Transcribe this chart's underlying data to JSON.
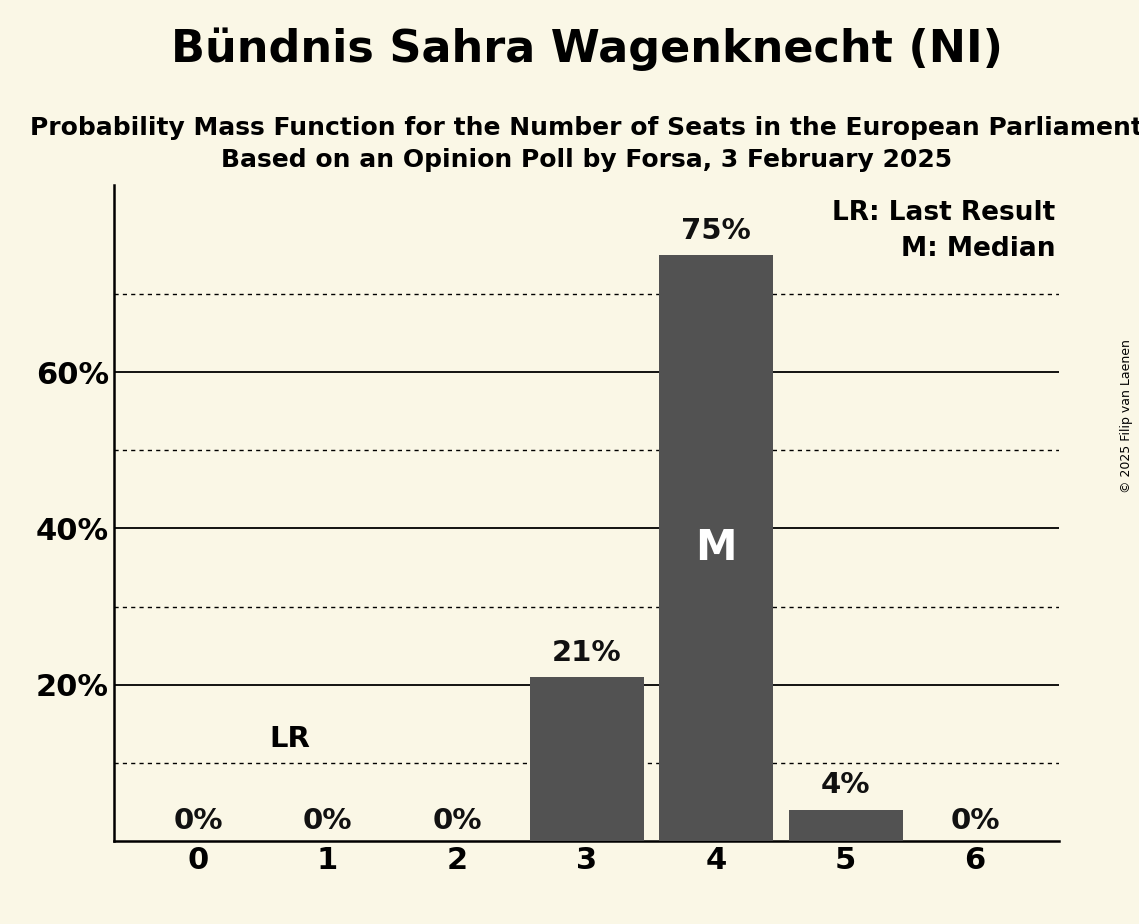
{
  "title": "Bündnis Sahra Wagenknecht (NI)",
  "subtitle1": "Probability Mass Function for the Number of Seats in the European Parliament",
  "subtitle2": "Based on an Opinion Poll by Forsa, 3 February 2025",
  "copyright": "© 2025 Filip van Laenen",
  "categories": [
    0,
    1,
    2,
    3,
    4,
    5,
    6
  ],
  "values": [
    0.0,
    0.0,
    0.0,
    0.21,
    0.75,
    0.04,
    0.0
  ],
  "bar_color": "#525252",
  "background_color": "#FAF7E6",
  "bar_labels": [
    "0%",
    "0%",
    "0%",
    "21%",
    "75%",
    "4%",
    "0%"
  ],
  "bar_label_color_outside": "#111111",
  "median_bar_index": 4,
  "median_label": "M",
  "lr_value": 0.1,
  "lr_label": "LR",
  "legend_lr": "LR: Last Result",
  "legend_m": "M: Median",
  "ylim": [
    0,
    0.84
  ],
  "solid_lines": [
    0.2,
    0.4,
    0.6
  ],
  "dotted_lines": [
    0.1,
    0.3,
    0.5,
    0.7
  ],
  "yticks": [
    0.2,
    0.4,
    0.6
  ],
  "ytick_labels": [
    "20%",
    "40%",
    "60%"
  ],
  "title_fontsize": 32,
  "subtitle_fontsize": 18,
  "axis_fontsize": 22,
  "label_fontsize": 21,
  "median_fontsize": 30,
  "legend_fontsize": 19,
  "copyright_fontsize": 9
}
